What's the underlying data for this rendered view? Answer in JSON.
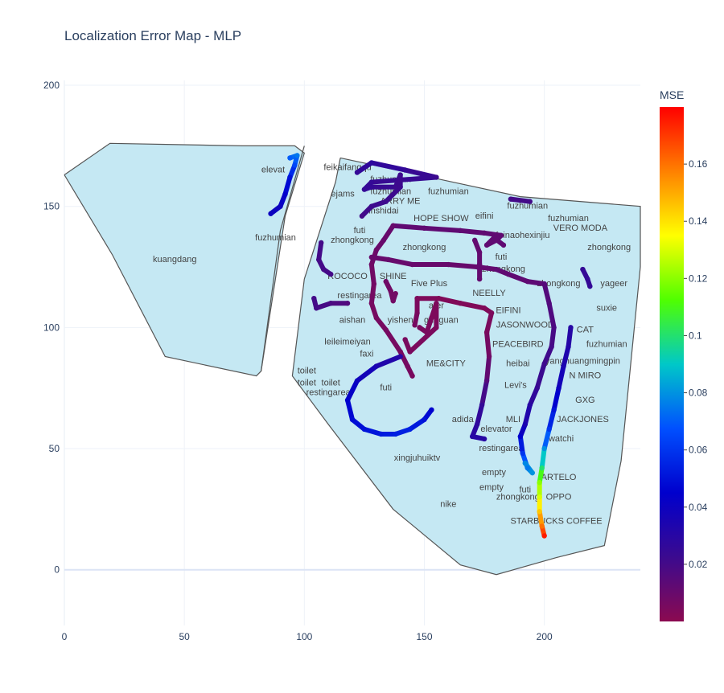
{
  "chart_data": {
    "type": "scatter",
    "title": "Localization Error Map - MLP",
    "xlabel": "",
    "ylabel": "",
    "xlim": [
      0,
      240
    ],
    "ylim": [
      -23,
      202
    ],
    "x_ticks": [
      0,
      50,
      100,
      150,
      200
    ],
    "y_ticks": [
      0,
      50,
      100,
      150,
      200
    ],
    "grid": true,
    "colorbar": {
      "title": "MSE",
      "min": 0.0,
      "max": 0.18,
      "ticks": [
        0.02,
        0.04,
        0.06,
        0.08,
        0.1,
        0.12,
        0.14,
        0.16
      ],
      "colorscale": [
        "#8b0a50",
        "#3b0a8f",
        "#0000cd",
        "#0050ff",
        "#00c8c8",
        "#50ff00",
        "#ffff00",
        "#ff8000",
        "#ff0000"
      ]
    },
    "floor_color": "#c5e8f3",
    "building_outlines": [
      [
        [
          0,
          163
        ],
        [
          19,
          176
        ],
        [
          74,
          175
        ],
        [
          96,
          175
        ],
        [
          100,
          172
        ],
        [
          92,
          146
        ],
        [
          82,
          82
        ],
        [
          80,
          80
        ],
        [
          42,
          88
        ],
        [
          20,
          130
        ],
        [
          0,
          163
        ]
      ],
      [
        [
          100,
          175
        ],
        [
          90,
          140
        ],
        [
          82,
          82
        ]
      ],
      [
        [
          115,
          170
        ],
        [
          190,
          154
        ],
        [
          240,
          150
        ],
        [
          240,
          125
        ],
        [
          232,
          45
        ],
        [
          225,
          10
        ],
        [
          205,
          5
        ],
        [
          180,
          -2
        ],
        [
          165,
          2
        ],
        [
          137,
          25
        ],
        [
          110,
          60
        ],
        [
          95,
          80
        ],
        [
          100,
          120
        ],
        [
          113,
          160
        ],
        [
          115,
          170
        ]
      ]
    ],
    "shop_labels": [
      {
        "text": "elevat",
        "x": 87,
        "y": 164
      },
      {
        "text": "fuzhumian",
        "x": 88,
        "y": 136
      },
      {
        "text": "kuangdang",
        "x": 46,
        "y": 127
      },
      {
        "text": "feikaifangqu",
        "x": 118,
        "y": 165
      },
      {
        "text": "fuzhumian",
        "x": 136,
        "y": 160
      },
      {
        "text": "fuzhumian",
        "x": 136,
        "y": 155
      },
      {
        "text": "ejams",
        "x": 116,
        "y": 154
      },
      {
        "text": "fuzhumian",
        "x": 160,
        "y": 155
      },
      {
        "text": "ARRY ME",
        "x": 140,
        "y": 151
      },
      {
        "text": "inshidai",
        "x": 133,
        "y": 147
      },
      {
        "text": "HOPE SHOW",
        "x": 157,
        "y": 144
      },
      {
        "text": "eifini",
        "x": 175,
        "y": 145
      },
      {
        "text": "fuzhumian",
        "x": 193,
        "y": 149
      },
      {
        "text": "fuzhumian",
        "x": 210,
        "y": 144
      },
      {
        "text": "VERO MODA",
        "x": 215,
        "y": 140
      },
      {
        "text": "futi",
        "x": 123,
        "y": 139
      },
      {
        "text": "zhongkong",
        "x": 120,
        "y": 135
      },
      {
        "text": "feinaohexinjiu",
        "x": 191,
        "y": 137
      },
      {
        "text": "zhongkong",
        "x": 150,
        "y": 132
      },
      {
        "text": "zhongkong",
        "x": 227,
        "y": 132
      },
      {
        "text": "futi",
        "x": 182,
        "y": 128
      },
      {
        "text": "zhongkong",
        "x": 183,
        "y": 123
      },
      {
        "text": "ROCOCO",
        "x": 118,
        "y": 120
      },
      {
        "text": "SHINE",
        "x": 137,
        "y": 120
      },
      {
        "text": "Five Plus",
        "x": 152,
        "y": 117
      },
      {
        "text": "zhongkong",
        "x": 206,
        "y": 117
      },
      {
        "text": "yageer",
        "x": 229,
        "y": 117
      },
      {
        "text": "restingarea",
        "x": 123,
        "y": 112
      },
      {
        "text": "NEELLY",
        "x": 177,
        "y": 113
      },
      {
        "text": "ater",
        "x": 155,
        "y": 108
      },
      {
        "text": "EIFINI",
        "x": 185,
        "y": 106
      },
      {
        "text": "suxie",
        "x": 226,
        "y": 107
      },
      {
        "text": "aishan",
        "x": 120,
        "y": 102
      },
      {
        "text": "yishen",
        "x": 140,
        "y": 102
      },
      {
        "text": "guoguan",
        "x": 157,
        "y": 102
      },
      {
        "text": "JASONWOOD",
        "x": 192,
        "y": 100
      },
      {
        "text": "CAT",
        "x": 217,
        "y": 98
      },
      {
        "text": "leileimeiyan",
        "x": 118,
        "y": 93
      },
      {
        "text": "PEACEBIRD",
        "x": 189,
        "y": 92
      },
      {
        "text": "fuzhumian",
        "x": 226,
        "y": 92
      },
      {
        "text": "faxi",
        "x": 126,
        "y": 88
      },
      {
        "text": "ME&CITY",
        "x": 159,
        "y": 84
      },
      {
        "text": "heibai",
        "x": 189,
        "y": 84
      },
      {
        "text": "yanghuangmingpin",
        "x": 216,
        "y": 85
      },
      {
        "text": "toilet",
        "x": 101,
        "y": 81
      },
      {
        "text": "N MIRO",
        "x": 217,
        "y": 79
      },
      {
        "text": "toilet",
        "x": 101,
        "y": 76
      },
      {
        "text": "toilet",
        "x": 111,
        "y": 76
      },
      {
        "text": "Levi's",
        "x": 188,
        "y": 75
      },
      {
        "text": "restingarea",
        "x": 110,
        "y": 72
      },
      {
        "text": "futi",
        "x": 134,
        "y": 74
      },
      {
        "text": "GXG",
        "x": 217,
        "y": 69
      },
      {
        "text": "adida",
        "x": 166,
        "y": 61
      },
      {
        "text": "MLI",
        "x": 187,
        "y": 61
      },
      {
        "text": "JACKJONES",
        "x": 216,
        "y": 61
      },
      {
        "text": "elevator",
        "x": 180,
        "y": 57
      },
      {
        "text": "watchi",
        "x": 207,
        "y": 53
      },
      {
        "text": "restingarea",
        "x": 182,
        "y": 49
      },
      {
        "text": "xingjuhuiktv",
        "x": 147,
        "y": 45
      },
      {
        "text": "empty",
        "x": 179,
        "y": 39
      },
      {
        "text": "ARTELO",
        "x": 206,
        "y": 37
      },
      {
        "text": "empty",
        "x": 178,
        "y": 33
      },
      {
        "text": "futi",
        "x": 192,
        "y": 32
      },
      {
        "text": "zhongkong",
        "x": 189,
        "y": 29
      },
      {
        "text": "OPPO",
        "x": 206,
        "y": 29
      },
      {
        "text": "nike",
        "x": 160,
        "y": 26
      },
      {
        "text": "STARBUCKS COFFEE",
        "x": 205,
        "y": 19
      }
    ],
    "series": [
      {
        "points": [
          [
            94,
            170,
            0.07
          ],
          [
            97,
            171,
            0.075
          ],
          [
            96,
            167,
            0.065
          ],
          [
            94,
            162,
            0.05
          ],
          [
            92,
            155,
            0.045
          ],
          [
            90,
            150,
            0.04
          ],
          [
            86,
            147,
            0.04
          ]
        ]
      },
      {
        "points": [
          [
            122,
            164,
            0.025
          ],
          [
            128,
            168,
            0.028
          ],
          [
            142,
            165,
            0.025
          ],
          [
            155,
            162,
            0.022
          ],
          [
            128,
            160,
            0.025
          ],
          [
            125,
            157,
            0.025
          ],
          [
            128,
            158,
            0.025
          ],
          [
            138,
            158,
            0.022
          ],
          [
            140,
            163,
            0.022
          ],
          [
            140,
            158,
            0.022
          ],
          [
            134,
            152,
            0.022
          ],
          [
            128,
            150,
            0.022
          ],
          [
            124,
            146,
            0.02
          ]
        ]
      },
      {
        "points": [
          [
            186,
            153,
            0.02
          ],
          [
            194,
            152,
            0.02
          ]
        ]
      },
      {
        "points": [
          [
            137,
            142,
            0.012
          ],
          [
            150,
            141,
            0.012
          ],
          [
            165,
            140,
            0.012
          ],
          [
            175,
            139,
            0.012
          ],
          [
            182,
            138,
            0.012
          ],
          [
            180,
            136,
            0.012
          ],
          [
            176,
            134,
            0.012
          ],
          [
            179,
            137,
            0.012
          ],
          [
            183,
            134,
            0.012
          ]
        ]
      },
      {
        "points": [
          [
            137,
            142,
            0.01
          ],
          [
            133,
            136,
            0.01
          ],
          [
            130,
            132,
            0.009
          ],
          [
            128,
            126,
            0.008
          ],
          [
            129,
            118,
            0.007
          ],
          [
            128,
            110,
            0.006
          ],
          [
            130,
            104,
            0.006
          ],
          [
            134,
            99,
            0.006
          ],
          [
            140,
            90,
            0.006
          ],
          [
            143,
            84,
            0.006
          ],
          [
            145,
            80,
            0.005
          ]
        ]
      },
      {
        "points": [
          [
            128,
            129,
            0.01
          ],
          [
            135,
            128,
            0.01
          ],
          [
            145,
            126,
            0.01
          ],
          [
            160,
            126,
            0.01
          ],
          [
            172,
            125,
            0.01
          ],
          [
            180,
            124,
            0.012
          ],
          [
            185,
            122,
            0.012
          ],
          [
            193,
            119,
            0.012
          ],
          [
            200,
            118,
            0.014
          ]
        ]
      },
      {
        "points": [
          [
            171,
            136,
            0.011
          ],
          [
            173,
            131,
            0.011
          ],
          [
            173,
            126,
            0.011
          ],
          [
            173,
            120,
            0.011
          ]
        ]
      },
      {
        "points": [
          [
            134,
            119,
            0.008
          ],
          [
            136,
            115,
            0.007
          ],
          [
            137,
            111,
            0.007
          ],
          [
            138,
            114,
            0.007
          ]
        ]
      },
      {
        "points": [
          [
            146,
            101,
            0.006
          ],
          [
            147,
            106,
            0.005
          ],
          [
            147,
            112,
            0.004
          ],
          [
            156,
            112,
            0.003
          ],
          [
            165,
            110,
            0.003
          ],
          [
            175,
            108,
            0.003
          ],
          [
            178,
            106,
            0.003
          ]
        ]
      },
      {
        "points": [
          [
            148,
            100,
            0.005
          ],
          [
            151,
            98,
            0.005
          ],
          [
            153,
            104,
            0.004
          ],
          [
            155,
            110,
            0.004
          ],
          [
            155,
            100,
            0.004
          ],
          [
            144,
            90,
            0.005
          ],
          [
            142,
            95,
            0.005
          ]
        ]
      },
      {
        "points": [
          [
            178,
            106,
            0.004
          ],
          [
            176,
            98,
            0.005
          ],
          [
            177,
            88,
            0.008
          ],
          [
            176,
            78,
            0.015
          ],
          [
            174,
            68,
            0.025
          ],
          [
            172,
            60,
            0.028
          ],
          [
            170,
            55,
            0.03
          ],
          [
            175,
            54,
            0.03
          ]
        ]
      },
      {
        "points": [
          [
            200,
            118,
            0.015
          ],
          [
            202,
            110,
            0.016
          ],
          [
            204,
            100,
            0.018
          ],
          [
            203,
            92,
            0.02
          ],
          [
            200,
            85,
            0.022
          ],
          [
            197,
            75,
            0.024
          ],
          [
            194,
            68,
            0.03
          ],
          [
            192,
            60,
            0.035
          ],
          [
            190,
            55,
            0.045
          ],
          [
            191,
            48,
            0.06
          ],
          [
            193,
            42,
            0.075
          ],
          [
            195,
            40,
            0.08
          ],
          [
            192,
            44,
            0.078
          ]
        ]
      },
      {
        "points": [
          [
            211,
            100,
            0.03
          ],
          [
            210,
            92,
            0.032
          ],
          [
            208,
            84,
            0.035
          ],
          [
            206,
            75,
            0.04
          ],
          [
            204,
            66,
            0.05
          ],
          [
            202,
            58,
            0.06
          ],
          [
            200,
            50,
            0.08
          ],
          [
            199,
            42,
            0.1
          ],
          [
            198,
            36,
            0.12
          ],
          [
            198,
            30,
            0.13
          ],
          [
            198,
            24,
            0.145
          ],
          [
            199,
            18,
            0.16
          ],
          [
            200,
            14,
            0.175
          ]
        ]
      },
      {
        "points": [
          [
            216,
            124,
            0.025
          ],
          [
            218,
            120,
            0.025
          ],
          [
            219,
            117,
            0.025
          ]
        ]
      },
      {
        "points": [
          [
            107,
            135,
            0.02
          ],
          [
            106,
            128,
            0.02
          ],
          [
            108,
            124,
            0.02
          ],
          [
            111,
            122,
            0.02
          ]
        ]
      },
      {
        "points": [
          [
            104,
            112,
            0.02
          ],
          [
            105,
            108,
            0.02
          ],
          [
            111,
            110,
            0.018
          ],
          [
            118,
            110,
            0.016
          ]
        ]
      },
      {
        "points": [
          [
            140,
            88,
            0.03
          ],
          [
            130,
            84,
            0.035
          ],
          [
            122,
            78,
            0.04
          ],
          [
            118,
            70,
            0.045
          ],
          [
            120,
            62,
            0.048
          ],
          [
            125,
            58,
            0.05
          ],
          [
            132,
            56,
            0.052
          ],
          [
            138,
            56,
            0.054
          ],
          [
            144,
            58,
            0.054
          ],
          [
            150,
            62,
            0.05
          ],
          [
            153,
            66,
            0.045
          ]
        ]
      }
    ]
  }
}
